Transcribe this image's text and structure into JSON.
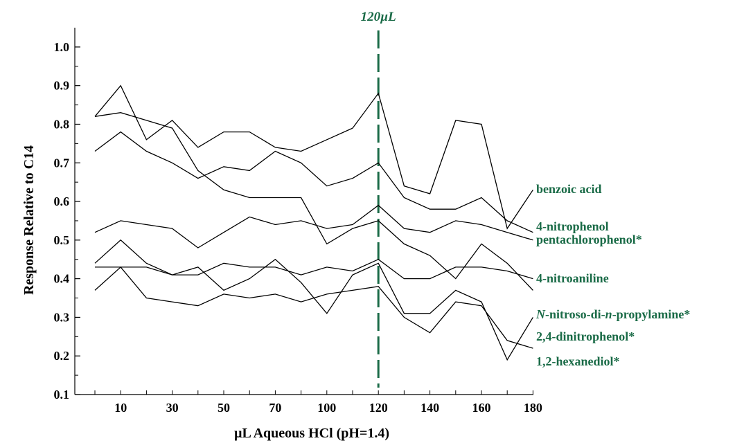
{
  "chart_data": {
    "type": "line",
    "xlabel": "µL Aqueous HCl (pH=1.4)",
    "ylabel": "Response Relative to C14",
    "x_categories": [
      0,
      10,
      20,
      30,
      40,
      50,
      60,
      70,
      80,
      100,
      110,
      120,
      130,
      140,
      150,
      160,
      170,
      180
    ],
    "x_tick_labels": [
      "10",
      "30",
      "50",
      "70",
      "100",
      "120",
      "140",
      "160",
      "180"
    ],
    "x_tick_positions": [
      1,
      3,
      5,
      7,
      9,
      11,
      13,
      15,
      17
    ],
    "ylim": [
      0.1,
      1.05
    ],
    "y_tick_values": [
      0.1,
      0.2,
      0.3,
      0.4,
      0.5,
      0.6,
      0.7,
      0.8,
      0.9,
      1.0
    ],
    "y_tick_labels": [
      "0.1",
      "0.2",
      "0.3",
      "0.4",
      "0.5",
      "0.6",
      "0.7",
      "0.8",
      "0.9",
      "1.0"
    ],
    "grid": false,
    "annotation": {
      "text": "120µL",
      "x_index": 11,
      "color": "#1a6b47",
      "style": "dashed-vertical-line"
    },
    "label_color": "#1a6b47",
    "series": [
      {
        "name": "benzoic acid",
        "values": [
          0.82,
          0.9,
          0.76,
          0.81,
          0.74,
          0.78,
          0.78,
          0.74,
          0.73,
          0.76,
          0.79,
          0.88,
          0.64,
          0.62,
          0.81,
          0.8,
          0.53,
          0.63
        ]
      },
      {
        "name": "4-nitrophenol",
        "values": [
          0.82,
          0.83,
          0.81,
          0.79,
          0.68,
          0.63,
          0.61,
          0.61,
          0.61,
          0.49,
          0.53,
          0.55,
          0.49,
          0.46,
          0.4,
          0.49,
          0.44,
          0.37
        ]
      },
      {
        "name": "pentachlorophenol*",
        "values": [
          0.73,
          0.78,
          0.73,
          0.7,
          0.66,
          0.69,
          0.68,
          0.73,
          0.7,
          0.64,
          0.66,
          0.7,
          0.61,
          0.58,
          0.58,
          0.61,
          0.55,
          0.52
        ]
      },
      {
        "name": "4-nitroaniline",
        "values": [
          0.52,
          0.55,
          0.54,
          0.53,
          0.48,
          0.52,
          0.56,
          0.54,
          0.55,
          0.53,
          0.54,
          0.59,
          0.53,
          0.52,
          0.55,
          0.54,
          0.52,
          0.5
        ]
      },
      {
        "name": "N-nitroso-di-n-propylamine*",
        "values": [
          0.43,
          0.43,
          0.43,
          0.41,
          0.41,
          0.44,
          0.43,
          0.43,
          0.41,
          0.43,
          0.42,
          0.45,
          0.4,
          0.4,
          0.43,
          0.43,
          0.42,
          0.4
        ]
      },
      {
        "name": "2,4-dinitrophenol*",
        "values": [
          0.44,
          0.5,
          0.44,
          0.41,
          0.43,
          0.37,
          0.4,
          0.45,
          0.39,
          0.31,
          0.41,
          0.44,
          0.31,
          0.31,
          0.37,
          0.34,
          0.19,
          0.3
        ]
      },
      {
        "name": "1,2-hexanediol*",
        "values": [
          0.37,
          0.43,
          0.35,
          0.34,
          0.33,
          0.36,
          0.35,
          0.36,
          0.34,
          0.36,
          0.37,
          0.38,
          0.3,
          0.26,
          0.34,
          0.33,
          0.24,
          0.22
        ]
      }
    ],
    "series_label_order": [
      "benzoic acid",
      "4-nitrophenol",
      "pentachlorophenol*",
      "4-nitroaniline",
      "N-nitroso-di-n-propylamine*",
      "2,4-dinitrophenol*",
      "1,2-hexanediol*"
    ]
  }
}
